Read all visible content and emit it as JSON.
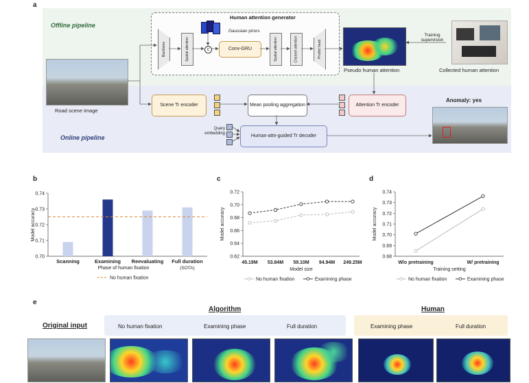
{
  "panel_a": {
    "letter": "a",
    "offline_label": "Offline pipeline",
    "online_label": "Online pipeline",
    "generator_title": "Human attention generator",
    "gaussian_label": "Gaussian priors",
    "backbone": "Backbone",
    "spatial_attention_1": "Spatial attention",
    "conv_gru": "Conv-GRU",
    "spatial_attention_2": "Spatial attention",
    "channel_attention": "Channel attention",
    "predict_head": "Predict head",
    "pseudo_label": "Pseudo human attention",
    "training_supervision": "Training supervision",
    "collected_label": "Collected human attention",
    "road_label": "Road scene image",
    "scene_encoder": "Scene Tr encoder",
    "mean_pool": "Mean pooling aggregation",
    "attn_encoder": "Attention Tr encoder",
    "anomaly": "Anomaly: yes",
    "query_label": "Query embedding",
    "decoder": "Human-attn-guided Tr decoder"
  },
  "panel_b": {
    "letter": "b",
    "chart_data": {
      "type": "bar",
      "categories": [
        "Scanning",
        "Examining",
        "Reevaluating",
        "Full duration"
      ],
      "category_note": "(SOTA)",
      "values": [
        0.709,
        0.736,
        0.729,
        0.731
      ],
      "colors": [
        "#c9d3ee",
        "#25398c",
        "#c9d3ee",
        "#c9d3ee"
      ],
      "baseline": {
        "name": "No human fixation",
        "value": 0.725,
        "color": "#d98a3a"
      },
      "xlabel": "Phase of human fixation",
      "ylabel": "Model accuracy",
      "ylim": [
        0.7,
        0.74
      ],
      "yticks": [
        "0.70",
        "0.71",
        "0.72",
        "0.73",
        "0.74"
      ]
    }
  },
  "panel_c": {
    "letter": "c",
    "chart_data": {
      "type": "line",
      "categories": [
        "45.19M",
        "53.84M",
        "59.10M",
        "94.94M",
        "249.25M"
      ],
      "series": [
        {
          "name": "No human fixation",
          "values": [
            0.672,
            0.675,
            0.684,
            0.685,
            0.689
          ],
          "color": "#b9b9b9"
        },
        {
          "name": "Examining phase",
          "values": [
            0.687,
            0.692,
            0.701,
            0.705,
            0.705
          ],
          "color": "#333333"
        }
      ],
      "xlabel": "Model size",
      "ylabel": "Model accuracy",
      "ylim": [
        0.62,
        0.72
      ],
      "yticks": [
        "0.62",
        "0.64",
        "0.66",
        "0.68",
        "0.70",
        "0.72"
      ]
    }
  },
  "panel_d": {
    "letter": "d",
    "chart_data": {
      "type": "line",
      "categories": [
        "W/o pretraining",
        "W/ pretraining"
      ],
      "series": [
        {
          "name": "No human fixation",
          "values": [
            0.685,
            0.724
          ],
          "color": "#b9b9b9"
        },
        {
          "name": "Examining phase",
          "values": [
            0.701,
            0.736
          ],
          "color": "#333333"
        }
      ],
      "xlabel": "Training setting",
      "ylabel": "Model accuracy",
      "ylim": [
        0.68,
        0.74
      ],
      "yticks": [
        "0.68",
        "0.69",
        "0.70",
        "0.71",
        "0.72",
        "0.73",
        "0.74"
      ]
    }
  },
  "panel_e": {
    "letter": "e",
    "original": "Original input",
    "algorithm": "Algorithm",
    "human": "Human",
    "cols": [
      "No human fixation",
      "Examining phase",
      "Full duration",
      "Examining phase",
      "Full duration"
    ]
  }
}
